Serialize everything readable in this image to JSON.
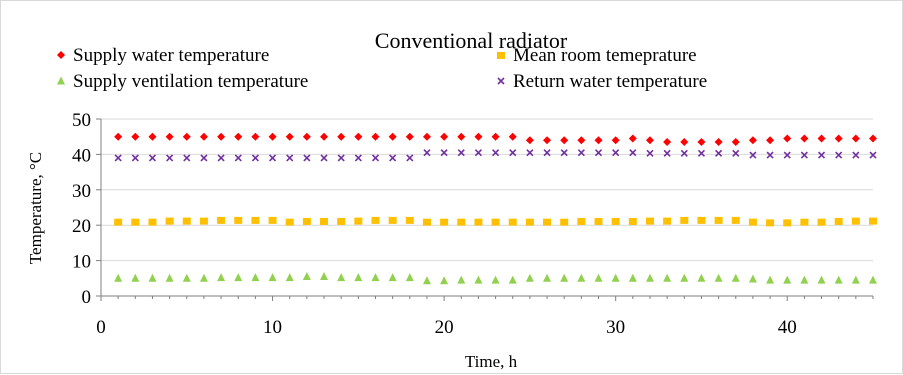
{
  "chart_data": {
    "type": "scatter",
    "title": "Conventional radiator",
    "xlabel": "Time, h",
    "ylabel": "Temperature, °C",
    "xlim": [
      0,
      45
    ],
    "ylim": [
      0,
      50
    ],
    "xticks": [
      0,
      10,
      20,
      30,
      40
    ],
    "yticks": [
      0,
      10,
      20,
      30,
      40,
      50
    ],
    "grid": "horizontal",
    "legend_position": "top",
    "x": [
      1,
      2,
      3,
      4,
      5,
      6,
      7,
      8,
      9,
      10,
      11,
      12,
      13,
      14,
      15,
      16,
      17,
      18,
      19,
      20,
      21,
      22,
      23,
      24,
      25,
      26,
      27,
      28,
      29,
      30,
      31,
      32,
      33,
      34,
      35,
      36,
      37,
      38,
      39,
      40,
      41,
      42,
      43,
      44,
      45
    ],
    "series": [
      {
        "name": "Supply water temperature",
        "marker": "diamond",
        "color": "#ff0000",
        "values": [
          45,
          45,
          45,
          45,
          45,
          45,
          45,
          45,
          45,
          45,
          45,
          45,
          45,
          45,
          45,
          45,
          45,
          45,
          45,
          45,
          45,
          45,
          45,
          45,
          44,
          44,
          44,
          44,
          44,
          44,
          44.5,
          44,
          43.5,
          43.5,
          43.5,
          43.5,
          43.5,
          44,
          44,
          44.5,
          44.5,
          44.5,
          44.5,
          44.5,
          44.5
        ]
      },
      {
        "name": "Mean room temepratur​e",
        "marker": "square",
        "color": "#ffc000",
        "values": [
          21,
          21,
          21,
          21.3,
          21.3,
          21.3,
          21.5,
          21.5,
          21.5,
          21.5,
          21,
          21.2,
          21.2,
          21.2,
          21.3,
          21.5,
          21.5,
          21.5,
          21,
          21,
          21,
          21,
          21,
          21,
          21,
          21,
          21,
          21.2,
          21.2,
          21.2,
          21.2,
          21.3,
          21.3,
          21.5,
          21.5,
          21.5,
          21.5,
          21,
          20.8,
          20.8,
          21,
          21,
          21.2,
          21.3,
          21.3
        ]
      },
      {
        "name": "Supply ventilation temperature",
        "marker": "triangle",
        "color": "#92d050",
        "values": [
          5,
          5,
          5,
          5,
          5,
          5,
          5.2,
          5.2,
          5.2,
          5.2,
          5.2,
          5.5,
          5.5,
          5.2,
          5.2,
          5.2,
          5.2,
          5.2,
          4.3,
          4.3,
          4.5,
          4.5,
          4.5,
          4.5,
          5,
          5,
          5,
          5,
          5,
          5,
          5,
          5,
          5,
          5,
          5,
          5,
          5,
          4.8,
          4.5,
          4.5,
          4.5,
          4.5,
          4.5,
          4.5,
          4.5
        ]
      },
      {
        "name": "Return water temperature",
        "marker": "x",
        "color": "#7030a0",
        "values": [
          39,
          39,
          39,
          39,
          39,
          39,
          39,
          39,
          39,
          39,
          39,
          39,
          39,
          39,
          39,
          39,
          39,
          39,
          40.5,
          40.5,
          40.5,
          40.5,
          40.5,
          40.5,
          40.5,
          40.5,
          40.5,
          40.5,
          40.5,
          40.5,
          40.5,
          40.3,
          40.3,
          40.3,
          40.3,
          40.3,
          40.3,
          39.8,
          39.8,
          39.8,
          39.8,
          39.8,
          39.8,
          39.8,
          39.8
        ]
      }
    ]
  }
}
